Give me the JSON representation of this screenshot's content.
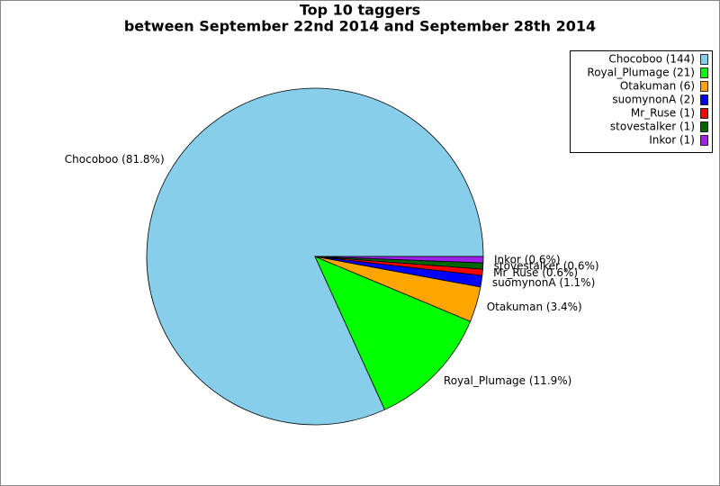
{
  "chart_data": {
    "type": "pie",
    "title": "Top 10 taggers",
    "subtitle": "between September 22nd 2014 and September 28th 2014",
    "values": [
      81.8,
      11.9,
      3.4,
      1.1,
      0.6,
      0.6,
      0.6
    ],
    "value_labels": [
      "Chocoboo (81.8%)",
      "Royal_Plumage (11.9%)",
      "Otakuman (3.4%)",
      "suomynonA (1.1%)",
      "Mr_Ruse (0.6%)",
      "stovestalker (0.6%)",
      "Inkor (0.6%)"
    ],
    "legend": [
      "Chocoboo (144)",
      "Royal_Plumage (21)",
      "Otakuman (6)",
      "suomynonA (2)",
      "Mr_Ruse (1)",
      "stovestalker (1)",
      "Inkor (1)"
    ],
    "colors": [
      "#87ceeb",
      "#00ff00",
      "#ffa500",
      "#0000ff",
      "#ff0000",
      "#006400",
      "#a020f0"
    ]
  }
}
